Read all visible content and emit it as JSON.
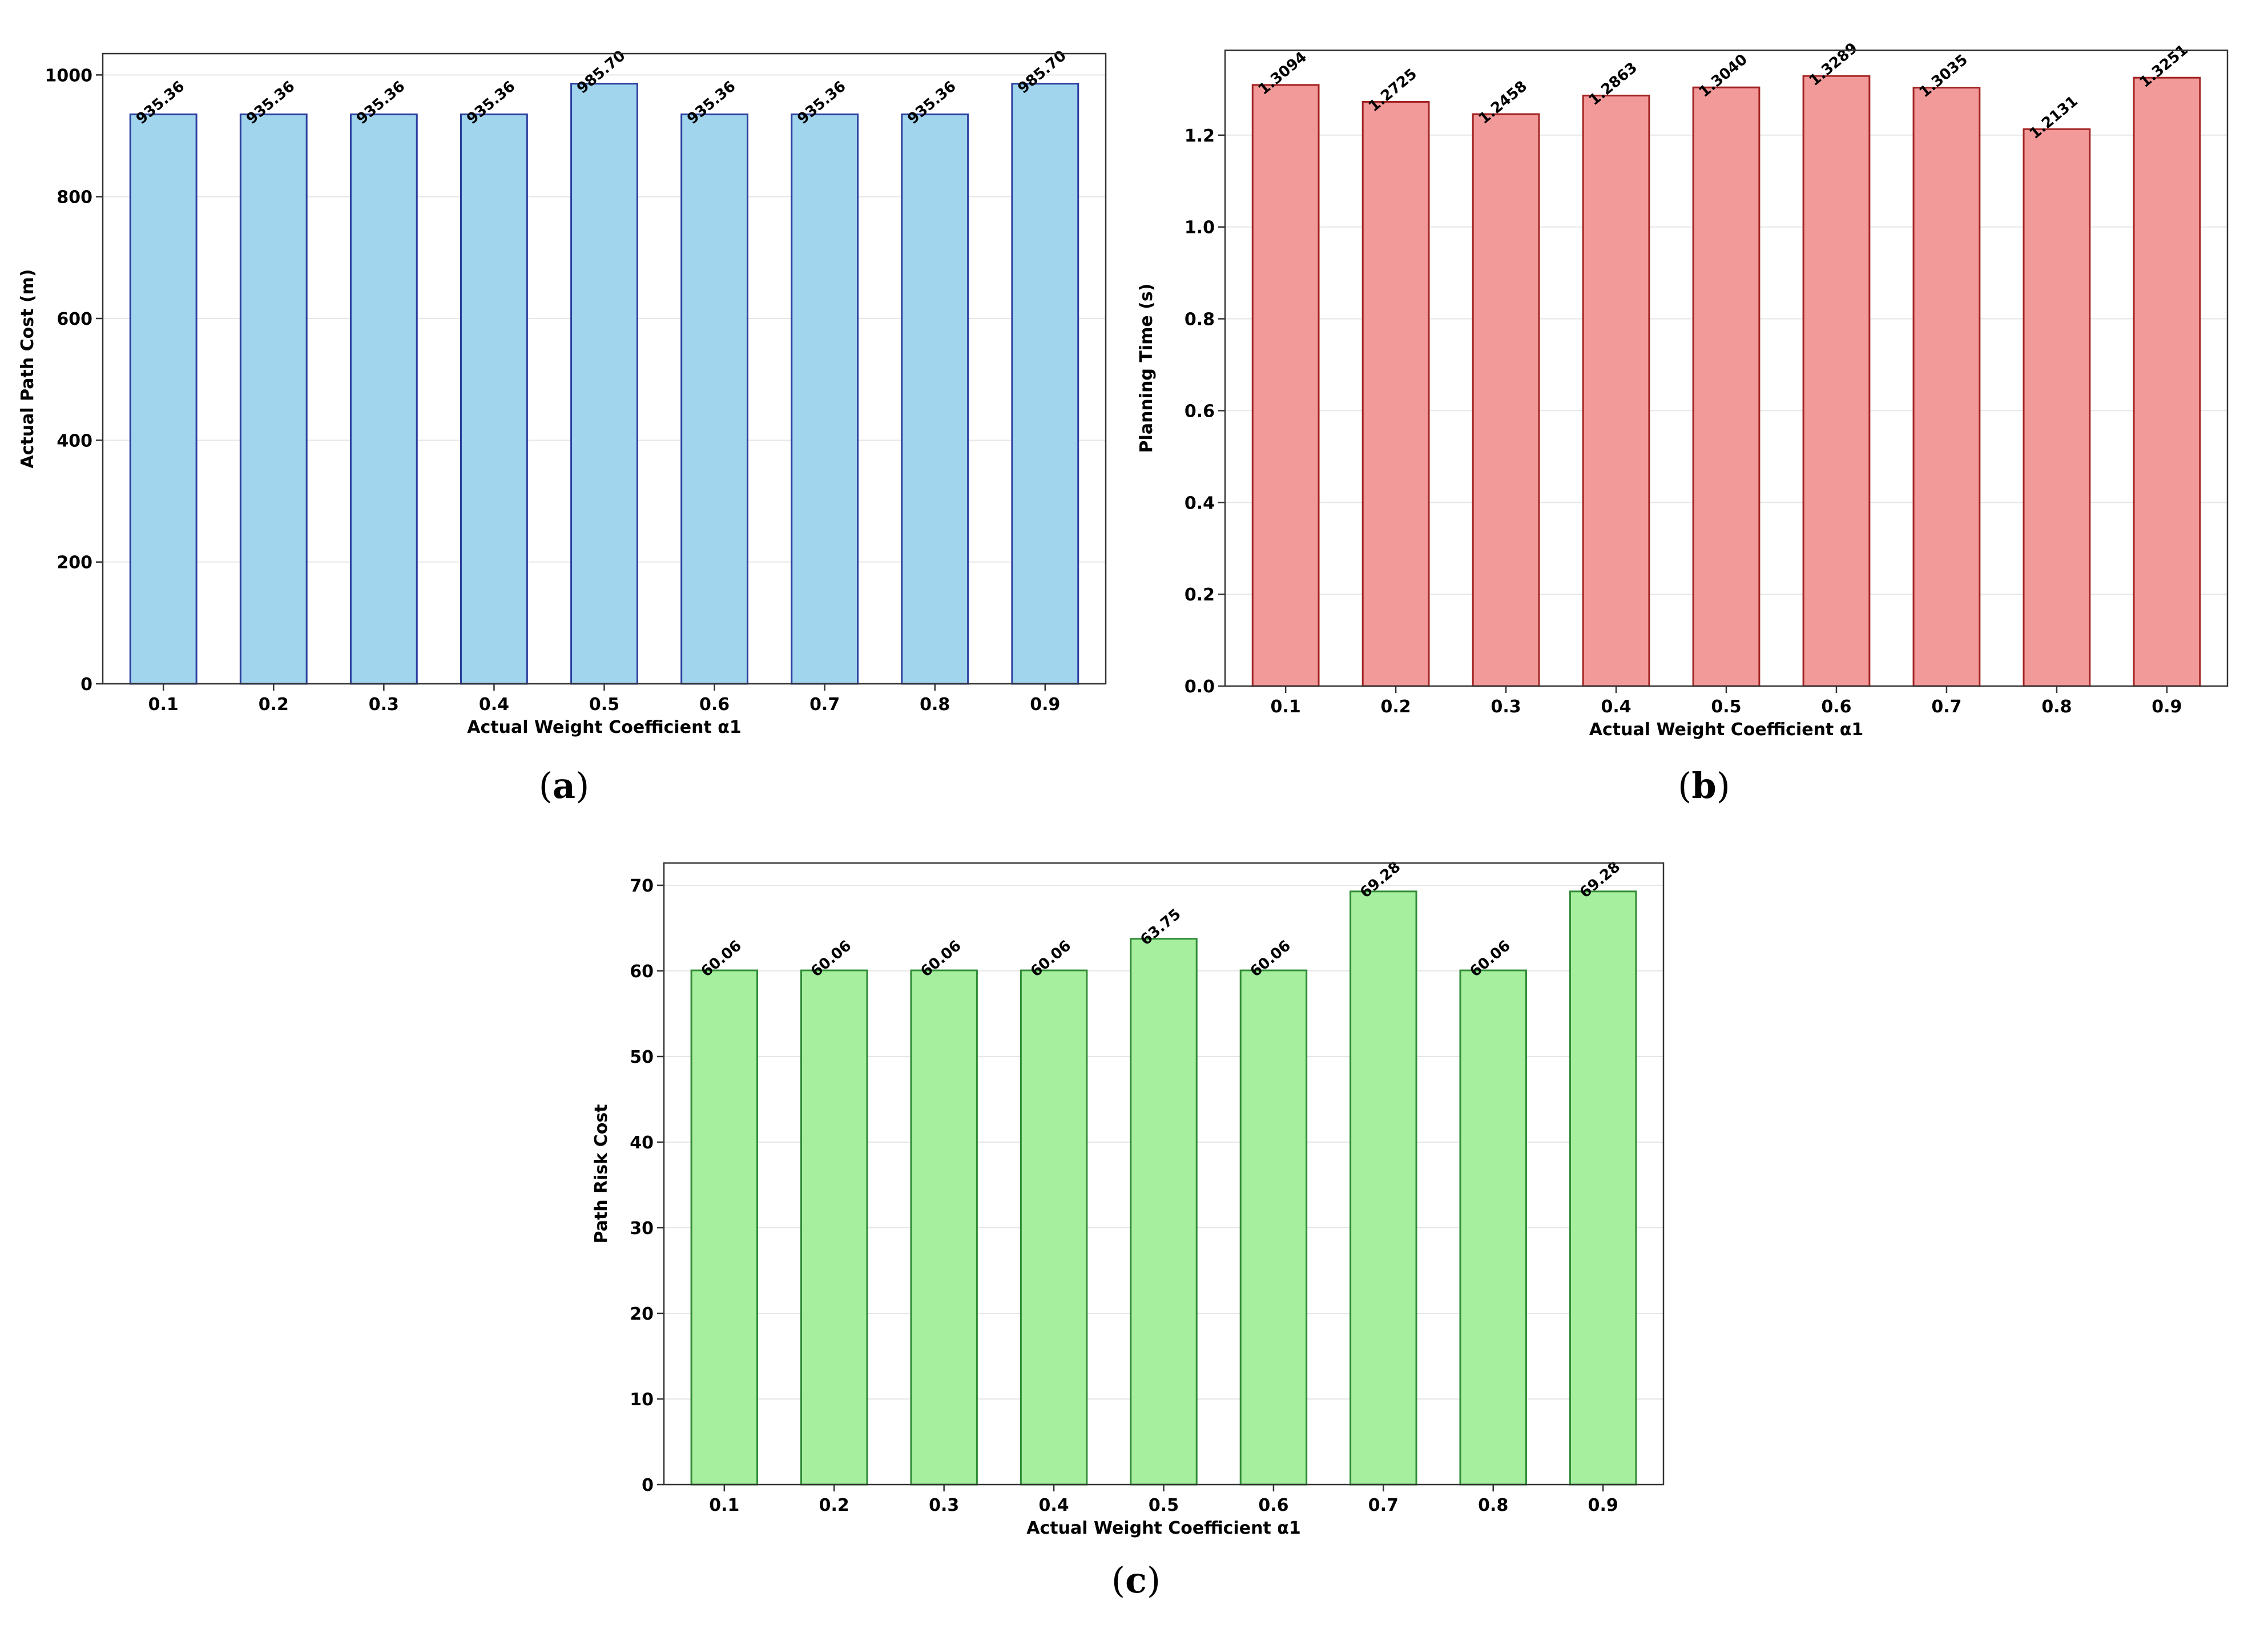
{
  "chart_data": [
    {
      "id": "a",
      "panel_label": "a",
      "type": "bar",
      "categories": [
        "0.1",
        "0.2",
        "0.3",
        "0.4",
        "0.5",
        "0.6",
        "0.7",
        "0.8",
        "0.9"
      ],
      "values": [
        935.36,
        935.36,
        935.36,
        935.36,
        985.7,
        935.36,
        935.36,
        935.36,
        985.7
      ],
      "value_labels": [
        "935.36",
        "935.36",
        "935.36",
        "935.36",
        "985.70",
        "935.36",
        "935.36",
        "935.36",
        "985.70"
      ],
      "title": "",
      "xlabel": "Actual Weight Coefficient α1",
      "ylabel": "Actual Path Cost (m)",
      "ylim": [
        0,
        1035
      ],
      "yticks": [
        0,
        200,
        400,
        600,
        800,
        1000
      ],
      "ytick_labels": [
        "0",
        "200",
        "400",
        "600",
        "800",
        "1000"
      ],
      "grid": true,
      "bar_color": "#a1d5ee",
      "edge_color": "#2b3f9e"
    },
    {
      "id": "b",
      "panel_label": "b",
      "type": "bar",
      "categories": [
        "0.1",
        "0.2",
        "0.3",
        "0.4",
        "0.5",
        "0.6",
        "0.7",
        "0.8",
        "0.9"
      ],
      "values": [
        1.3094,
        1.2725,
        1.2458,
        1.2863,
        1.304,
        1.3289,
        1.3035,
        1.2131,
        1.3251
      ],
      "value_labels": [
        "1.3094",
        "1.2725",
        "1.2458",
        "1.2863",
        "1.3040",
        "1.3289",
        "1.3035",
        "1.2131",
        "1.3251"
      ],
      "title": "",
      "xlabel": "Actual Weight Coefficient α1",
      "ylabel": "Planning Time (s)",
      "ylim": [
        0,
        1.385
      ],
      "yticks": [
        0.0,
        0.2,
        0.4,
        0.6,
        0.8,
        1.0,
        1.2
      ],
      "ytick_labels": [
        "0.0",
        "0.2",
        "0.4",
        "0.6",
        "0.8",
        "1.0",
        "1.2"
      ],
      "grid": true,
      "bar_color": "#f29a9a",
      "edge_color": "#a32323"
    },
    {
      "id": "c",
      "panel_label": "c",
      "type": "bar",
      "categories": [
        "0.1",
        "0.2",
        "0.3",
        "0.4",
        "0.5",
        "0.6",
        "0.7",
        "0.8",
        "0.9"
      ],
      "values": [
        60.06,
        60.06,
        60.06,
        60.06,
        63.75,
        60.06,
        69.28,
        60.06,
        69.28
      ],
      "value_labels": [
        "60.06",
        "60.06",
        "60.06",
        "60.06",
        "63.75",
        "60.06",
        "69.28",
        "60.06",
        "69.28"
      ],
      "title": "",
      "xlabel": "Actual Weight Coefficient α1",
      "ylabel": "Path Risk Cost",
      "ylim": [
        0,
        72.6
      ],
      "yticks": [
        0,
        10,
        20,
        30,
        40,
        50,
        60,
        70
      ],
      "ytick_labels": [
        "0",
        "10",
        "20",
        "30",
        "40",
        "50",
        "60",
        "70"
      ],
      "grid": true,
      "bar_color": "#a6ef9f",
      "edge_color": "#2f8b35"
    }
  ]
}
